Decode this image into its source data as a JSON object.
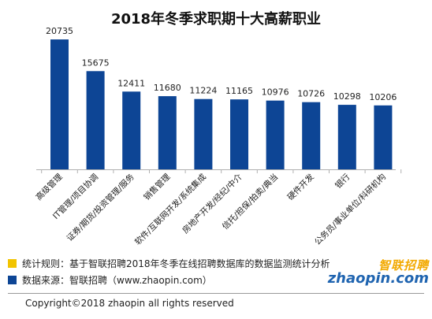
{
  "chart_data": {
    "type": "bar",
    "title": "2018年冬季求职期十大高薪职业",
    "categories": [
      "高级管理",
      "IT管理/项目协调",
      "证券/期货/投资管理/服务",
      "销售管理",
      "软件/互联网开发/系统集成",
      "房地产开发/经纪/中介",
      "信托/担保/拍卖/典当",
      "硬件开发",
      "银行",
      "公务员/事业单位/科研机构"
    ],
    "values": [
      20735,
      15675,
      12411,
      11680,
      11224,
      11165,
      10976,
      10726,
      10298,
      10206
    ],
    "ylim": [
      0,
      22000
    ],
    "bar_color": "#0d4595"
  },
  "footnotes": {
    "rule": "统计规则：基于智联招聘2018年冬季在线招聘数据库的数据监测统计分析",
    "source": "数据来源：智联招聘（www.zhaopin.com）",
    "rule_marker_color": "#f2c400",
    "source_marker_color": "#0d4595"
  },
  "logo": {
    "cn": "智联招聘",
    "en": "zhaopin.com"
  },
  "copyright": "Copyright©2018 zhaopin all rights reserved"
}
